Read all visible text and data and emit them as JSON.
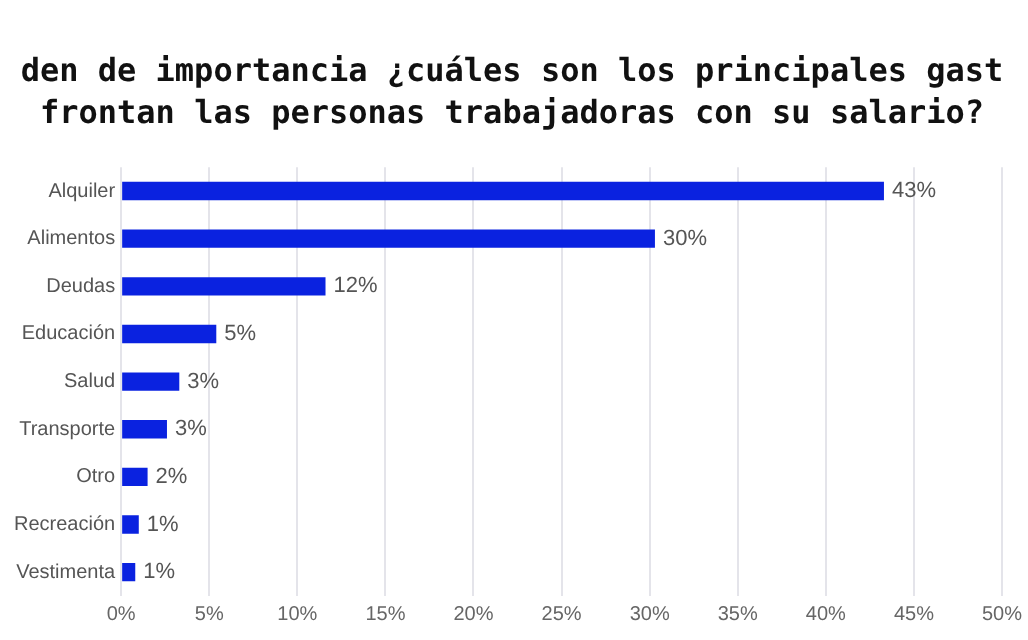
{
  "chart_data": {
    "type": "bar",
    "orientation": "horizontal",
    "title": "den de importancia ¿cuáles son los principales gast\nfrontan las personas trabajadoras con su salario?",
    "categories": [
      "Alquiler",
      "Alimentos",
      "Deudas",
      "Educación",
      "Salud",
      "Transporte",
      "Otro",
      "Recreación",
      "Vestimenta"
    ],
    "values": [
      43.3,
      30.3,
      11.6,
      5.4,
      3.3,
      2.6,
      1.5,
      1.0,
      0.8
    ],
    "value_labels": [
      "43%",
      "30%",
      "12%",
      "5%",
      "3%",
      "3%",
      "2%",
      "1%",
      "1%"
    ],
    "color": "#0a22e0",
    "xlim": [
      0,
      50
    ],
    "xticks": [
      {
        "value": 0,
        "label": "0%"
      },
      {
        "value": 5,
        "label": "5%"
      },
      {
        "value": 10,
        "label": "10%"
      },
      {
        "value": 15,
        "label": "15%"
      },
      {
        "value": 20,
        "label": "20%"
      },
      {
        "value": 25,
        "label": "25%"
      },
      {
        "value": 30,
        "label": "30%"
      },
      {
        "value": 35,
        "label": "35%"
      },
      {
        "value": 40,
        "label": "40%"
      },
      {
        "value": 45,
        "label": "45%"
      },
      {
        "value": 50,
        "label": "50%"
      }
    ],
    "grid": "x",
    "legend": false
  }
}
